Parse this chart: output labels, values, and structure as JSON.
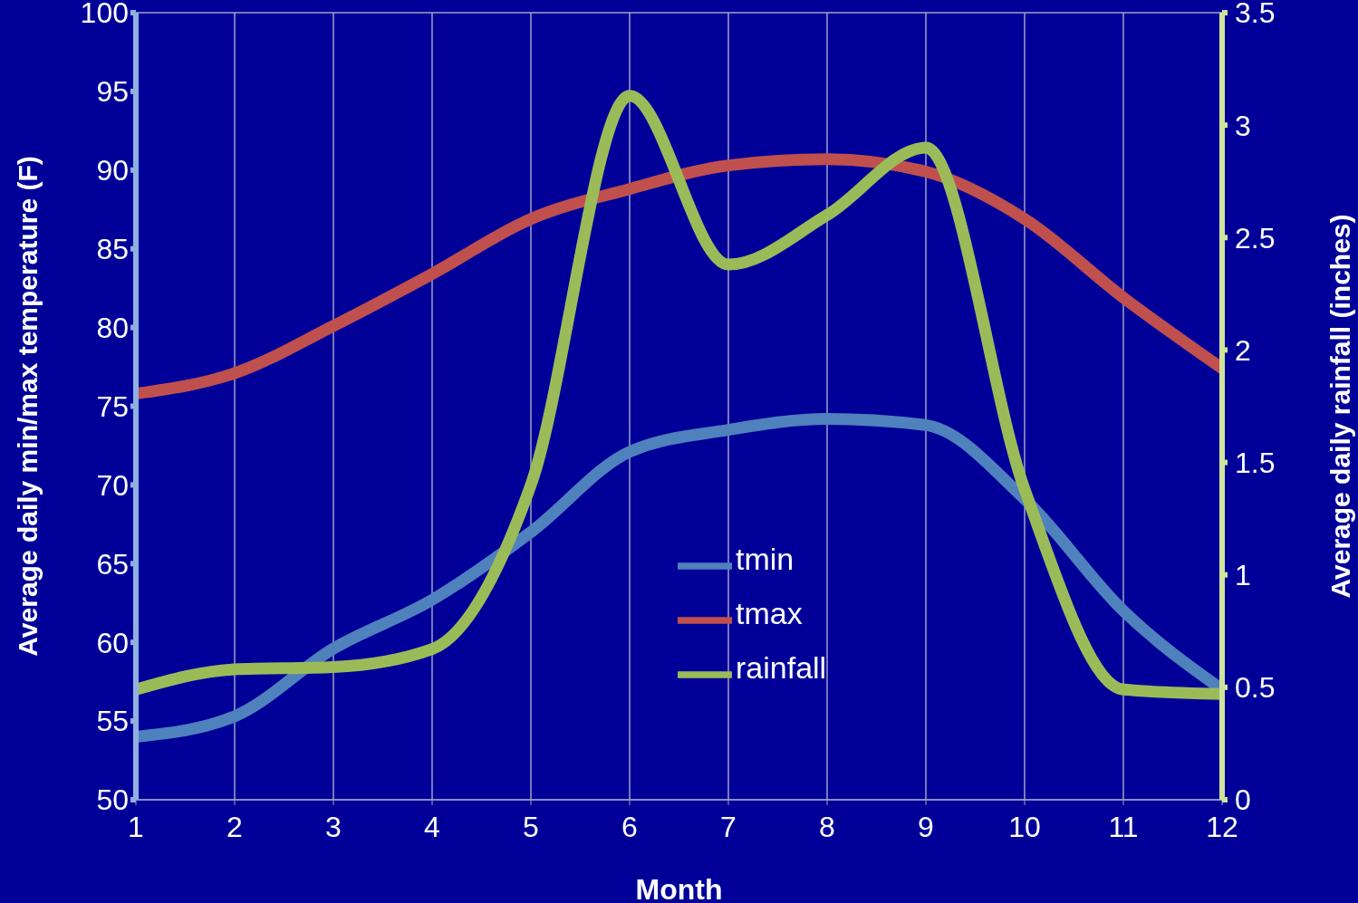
{
  "chart_data": {
    "type": "line",
    "xlabel": "Month",
    "ylabel": "Average daily min/max temperature (F)",
    "y2label": "Average daily rainfall (inches)",
    "x": [
      1,
      2,
      3,
      4,
      5,
      6,
      7,
      8,
      9,
      10,
      11,
      12
    ],
    "xlim": [
      1,
      12
    ],
    "xticks": [
      1,
      2,
      3,
      4,
      5,
      6,
      7,
      8,
      9,
      10,
      11,
      12
    ],
    "ylim": [
      50,
      100
    ],
    "yticks": [
      50,
      55,
      60,
      65,
      70,
      75,
      80,
      85,
      90,
      95,
      100
    ],
    "y2lim": [
      0,
      3.5
    ],
    "y2ticks": [
      0,
      0.5,
      1,
      1.5,
      2,
      2.5,
      3,
      3.5
    ],
    "grid": true,
    "legend": "center",
    "marker": "none",
    "line_style": "solid",
    "series": [
      {
        "name": "tmin",
        "color": "#4f81bd",
        "values": [
          54,
          55.3,
          59.6,
          62.7,
          67,
          72.1,
          73.5,
          74.2,
          73.8,
          69.1,
          62,
          57
        ]
      },
      {
        "name": "tmax",
        "color": "#c0504d",
        "values": [
          75.8,
          77.1,
          80.1,
          83.4,
          86.9,
          88.8,
          90.3,
          90.7,
          89.9,
          86.9,
          81.9,
          77.4
        ]
      },
      {
        "name": "rainfall",
        "color": "#9bbb59",
        "axis": "y2",
        "values": [
          0.49,
          0.58,
          0.59,
          0.67,
          1.4,
          3.13,
          2.38,
          2.6,
          2.9,
          1.38,
          0.49,
          0.47
        ]
      }
    ]
  }
}
